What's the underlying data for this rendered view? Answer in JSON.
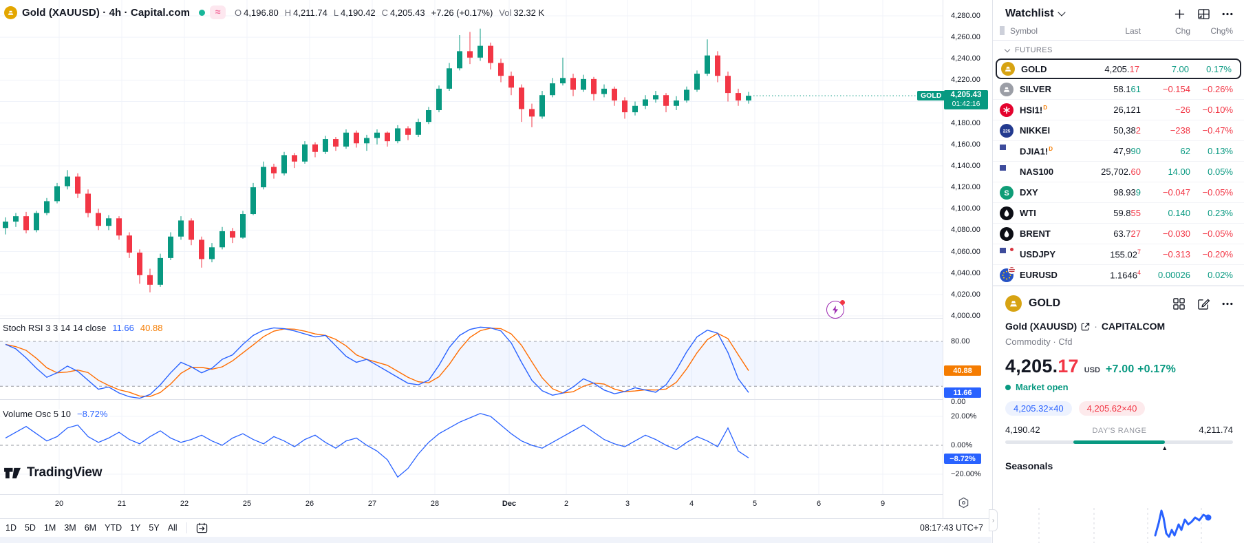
{
  "header": {
    "title": "Gold (XAUUSD) · 4h · Capital.com",
    "ohlc": {
      "o_l": "O",
      "o": "4,196.80",
      "h_l": "H",
      "h": "4,211.74",
      "l_l": "L",
      "l": "4,190.42",
      "c_l": "C",
      "c": "4,205.43",
      "chg": "+7.26 (+0.17%)",
      "vol_l": "Vol",
      "vol": "32.32 K"
    }
  },
  "indicators": {
    "stoch": {
      "label": "Stoch RSI 3 3 14 14 close",
      "k": "11.66",
      "d": "40.88",
      "axis_top": "80.00",
      "axis_bottom": "0.00",
      "d_badge": "40.88",
      "k_badge": "11.66"
    },
    "vol": {
      "label": "Volume Osc 5 10",
      "value": "−8.72%",
      "axis": [
        "20.00%",
        "0.00%",
        "−20.00%"
      ],
      "badge": "−8.72%"
    }
  },
  "price_scale": {
    "tag": "GOLD",
    "price": "4,205.43",
    "countdown": "01:42:16"
  },
  "toolbar": {
    "ranges": [
      "1D",
      "5D",
      "1M",
      "3M",
      "6M",
      "YTD",
      "1Y",
      "5Y",
      "All"
    ],
    "clock": "08:17:43 UTC+7"
  },
  "logo_text": "TradingView",
  "watchlist": {
    "title": "Watchlist",
    "columns": [
      "Symbol",
      "Last",
      "Chg",
      "Chg%"
    ],
    "section": "FUTURES",
    "rows": [
      {
        "symbol": "GOLD",
        "icon": "gold",
        "selected": true,
        "last_parts": [
          [
            "4,205.",
            ""
          ],
          [
            "17",
            "red"
          ]
        ],
        "chg": "7.00",
        "chg_c": "up",
        "pct": "0.17%",
        "pct_c": "up"
      },
      {
        "symbol": "SILVER",
        "icon": "silver",
        "last_parts": [
          [
            "58.1",
            ""
          ],
          [
            "61",
            "green"
          ]
        ],
        "chg": "−0.154",
        "chg_c": "down",
        "pct": "−0.26%",
        "pct_c": "down"
      },
      {
        "symbol": "HSI1!",
        "sup": "D",
        "icon": "hsi",
        "last_parts": [
          [
            "26,121",
            ""
          ]
        ],
        "chg": "−26",
        "chg_c": "down",
        "pct": "−0.10%",
        "pct_c": "down"
      },
      {
        "symbol": "NIKKEI",
        "icon": "nikkei",
        "last_parts": [
          [
            "50,38",
            ""
          ],
          [
            "2",
            "red"
          ]
        ],
        "chg": "−238",
        "chg_c": "down",
        "pct": "−0.47%",
        "pct_c": "down"
      },
      {
        "symbol": "DJIA1!",
        "sup": "D",
        "icon": "us",
        "last_parts": [
          [
            "47,9",
            ""
          ],
          [
            "90",
            "green"
          ]
        ],
        "chg": "62",
        "chg_c": "up",
        "pct": "0.13%",
        "pct_c": "up"
      },
      {
        "symbol": "NAS100",
        "icon": "us",
        "last_parts": [
          [
            "25,702.",
            ""
          ],
          [
            "60",
            "red"
          ]
        ],
        "chg": "14.00",
        "chg_c": "up",
        "pct": "0.05%",
        "pct_c": "up"
      },
      {
        "symbol": "DXY",
        "icon": "dxy",
        "last_parts": [
          [
            "98.93",
            ""
          ],
          [
            "9",
            "green"
          ]
        ],
        "chg": "−0.047",
        "chg_c": "down",
        "pct": "−0.05%",
        "pct_c": "down"
      },
      {
        "symbol": "WTI",
        "icon": "oil",
        "last_parts": [
          [
            "59.8",
            ""
          ],
          [
            "55",
            "red"
          ]
        ],
        "chg": "0.140",
        "chg_c": "up",
        "pct": "0.23%",
        "pct_c": "up"
      },
      {
        "symbol": "BRENT",
        "icon": "oil",
        "last_parts": [
          [
            "63.7",
            ""
          ],
          [
            "27",
            "red"
          ]
        ],
        "chg": "−0.030",
        "chg_c": "down",
        "pct": "−0.05%",
        "pct_c": "down"
      },
      {
        "symbol": "USDJPY",
        "icon": "usdjpy",
        "last_parts": [
          [
            "155.02",
            ""
          ],
          [
            "7",
            "sup-red"
          ]
        ],
        "chg": "−0.313",
        "chg_c": "down",
        "pct": "−0.20%",
        "pct_c": "down"
      },
      {
        "symbol": "EURUSD",
        "icon": "eurusd",
        "last_parts": [
          [
            "1.1646",
            ""
          ],
          [
            "4",
            "sup-red"
          ]
        ],
        "chg": "0.00026",
        "chg_c": "up",
        "pct": "0.02%",
        "pct_c": "up"
      }
    ]
  },
  "detail": {
    "symbol": "GOLD",
    "name": "Gold (XAUUSD)",
    "exchange": "CAPITALCOM",
    "type_line": "Commodity · Cfd",
    "price_int": "4,205.",
    "price_frac": "17",
    "currency": "USD",
    "change": "+7.00",
    "change_pct": "+0.17%",
    "status": "Market open",
    "bid": "4,205.32×40",
    "ask": "4,205.62×40",
    "range_low": "4,190.42",
    "range_label": "DAY'S RANGE",
    "range_high": "4,211.74",
    "seasonals": "Seasonals"
  },
  "chart_data": {
    "type": "candlestick",
    "title": "Gold (XAUUSD) 4h Capital.com",
    "price_ylim": [
      4000,
      4280
    ],
    "grid_step": 20,
    "current_price": 4205.43,
    "colors": {
      "up": "#089981",
      "down": "#f23645",
      "stoch_k": "#2962ff",
      "stoch_d": "#ff6d00",
      "vol": "#2962ff"
    },
    "x_ticks": {
      "labels": [
        "20",
        "21",
        "22",
        "25",
        "26",
        "27",
        "28",
        "Dec",
        "2",
        "3",
        "4",
        "5",
        "6",
        "9"
      ],
      "positions": [
        86,
        177,
        268,
        359,
        450,
        541,
        632,
        740,
        823,
        912,
        1005,
        1097,
        1190,
        1283
      ]
    },
    "candles": [
      [
        4082,
        4092,
        4076,
        4088
      ],
      [
        4088,
        4096,
        4083,
        4093
      ],
      [
        4093,
        4097,
        4077,
        4080
      ],
      [
        4080,
        4098,
        4078,
        4096
      ],
      [
        4096,
        4110,
        4094,
        4107
      ],
      [
        4107,
        4124,
        4105,
        4121
      ],
      [
        4121,
        4136,
        4118,
        4130
      ],
      [
        4130,
        4133,
        4110,
        4114
      ],
      [
        4114,
        4118,
        4092,
        4096
      ],
      [
        4096,
        4100,
        4080,
        4084
      ],
      [
        4084,
        4094,
        4080,
        4091
      ],
      [
        4091,
        4093,
        4071,
        4075
      ],
      [
        4075,
        4078,
        4054,
        4059
      ],
      [
        4059,
        4062,
        4030,
        4038
      ],
      [
        4038,
        4044,
        4022,
        4029
      ],
      [
        4029,
        4058,
        4027,
        4054
      ],
      [
        4054,
        4078,
        4052,
        4074
      ],
      [
        4074,
        4093,
        4071,
        4089
      ],
      [
        4089,
        4091,
        4066,
        4071
      ],
      [
        4071,
        4074,
        4045,
        4053
      ],
      [
        4053,
        4068,
        4050,
        4064
      ],
      [
        4064,
        4083,
        4062,
        4079
      ],
      [
        4079,
        4082,
        4068,
        4073
      ],
      [
        4073,
        4098,
        4072,
        4095
      ],
      [
        4095,
        4124,
        4094,
        4120
      ],
      [
        4120,
        4144,
        4118,
        4139
      ],
      [
        4139,
        4142,
        4128,
        4133
      ],
      [
        4133,
        4153,
        4131,
        4150
      ],
      [
        4150,
        4152,
        4138,
        4144
      ],
      [
        4144,
        4163,
        4142,
        4160
      ],
      [
        4160,
        4162,
        4148,
        4153
      ],
      [
        4153,
        4168,
        4151,
        4165
      ],
      [
        4165,
        4167,
        4154,
        4158
      ],
      [
        4158,
        4174,
        4156,
        4171
      ],
      [
        4171,
        4173,
        4157,
        4161
      ],
      [
        4161,
        4169,
        4154,
        4166
      ],
      [
        4166,
        4174,
        4160,
        4171
      ],
      [
        4171,
        4172,
        4158,
        4163
      ],
      [
        4163,
        4178,
        4161,
        4175
      ],
      [
        4175,
        4177,
        4164,
        4169
      ],
      [
        4169,
        4184,
        4167,
        4181
      ],
      [
        4181,
        4195,
        4179,
        4192
      ],
      [
        4192,
        4215,
        4190,
        4212
      ],
      [
        4212,
        4236,
        4210,
        4231
      ],
      [
        4231,
        4262,
        4229,
        4247
      ],
      [
        4247,
        4265,
        4235,
        4241
      ],
      [
        4241,
        4268,
        4238,
        4252
      ],
      [
        4252,
        4255,
        4230,
        4236
      ],
      [
        4236,
        4240,
        4218,
        4224
      ],
      [
        4224,
        4228,
        4206,
        4213
      ],
      [
        4213,
        4216,
        4181,
        4193
      ],
      [
        4193,
        4198,
        4176,
        4186
      ],
      [
        4186,
        4210,
        4184,
        4206
      ],
      [
        4206,
        4222,
        4204,
        4217
      ],
      [
        4217,
        4241,
        4215,
        4222
      ],
      [
        4222,
        4226,
        4205,
        4211
      ],
      [
        4211,
        4225,
        4209,
        4221
      ],
      [
        4221,
        4223,
        4201,
        4207
      ],
      [
        4207,
        4216,
        4204,
        4212
      ],
      [
        4212,
        4214,
        4196,
        4201
      ],
      [
        4201,
        4204,
        4184,
        4190
      ],
      [
        4190,
        4200,
        4187,
        4196
      ],
      [
        4196,
        4206,
        4193,
        4202
      ],
      [
        4202,
        4210,
        4199,
        4206
      ],
      [
        4206,
        4208,
        4190,
        4196
      ],
      [
        4196,
        4205,
        4192,
        4201
      ],
      [
        4201,
        4214,
        4199,
        4211
      ],
      [
        4211,
        4229,
        4209,
        4226
      ],
      [
        4226,
        4258,
        4224,
        4243
      ],
      [
        4243,
        4247,
        4218,
        4224
      ],
      [
        4224,
        4228,
        4200,
        4208
      ],
      [
        4208,
        4212,
        4196,
        4201
      ],
      [
        4201,
        4209,
        4198,
        4205.43
      ]
    ],
    "stoch_rsi": {
      "bands": [
        80,
        20
      ],
      "k_last": 11.66,
      "d_last": 40.88,
      "k": [
        76,
        70,
        58,
        44,
        32,
        38,
        47,
        40,
        28,
        16,
        19,
        11,
        6,
        4,
        9,
        22,
        38,
        52,
        46,
        38,
        44,
        56,
        62,
        76,
        88,
        95,
        98,
        97,
        94,
        90,
        86,
        88,
        74,
        60,
        52,
        56,
        48,
        40,
        32,
        24,
        22,
        28,
        48,
        72,
        88,
        96,
        99,
        98,
        94,
        78,
        52,
        28,
        14,
        8,
        11,
        19,
        30,
        24,
        15,
        10,
        13,
        18,
        15,
        12,
        22,
        42,
        66,
        86,
        95,
        91,
        65,
        30,
        11.66
      ],
      "d": [
        76,
        73,
        68,
        57.3,
        44.7,
        38,
        39,
        41.7,
        38.3,
        28,
        21,
        15.3,
        12,
        7,
        6.3,
        11.7,
        23,
        37.3,
        45.3,
        45.3,
        42.7,
        46,
        54,
        64.7,
        75.3,
        86.3,
        93.7,
        96.7,
        96.3,
        93.7,
        90,
        88,
        82.7,
        74,
        62,
        56,
        52,
        48,
        40,
        32,
        26,
        24.7,
        32.7,
        49.3,
        69.3,
        85.3,
        94.3,
        97.7,
        97,
        90,
        74.7,
        52.7,
        31.3,
        16.7,
        11,
        12.7,
        20,
        24.3,
        23,
        16.3,
        12.7,
        13.7,
        15.3,
        15,
        16.3,
        25.3,
        43.3,
        64.7,
        82.3,
        90.7,
        83.7,
        62,
        40.88
      ]
    },
    "volume_osc": {
      "ylim": [
        -20,
        20
      ],
      "last": -8.72,
      "values": [
        5,
        9,
        13,
        8,
        3,
        6,
        12,
        14,
        6,
        2,
        5,
        9,
        4,
        1,
        6,
        10,
        5,
        2,
        4,
        7,
        3,
        0,
        5,
        8,
        4,
        1,
        6,
        3,
        -1,
        4,
        7,
        2,
        -2,
        3,
        5,
        0,
        -4,
        -10,
        -22,
        -16,
        -6,
        2,
        8,
        12,
        16,
        19,
        22,
        20,
        14,
        8,
        3,
        0,
        -2,
        2,
        6,
        10,
        14,
        9,
        4,
        1,
        -1,
        3,
        7,
        4,
        0,
        -3,
        2,
        6,
        3,
        -1,
        12,
        -4,
        -8.72
      ]
    },
    "seasonals_spark": {
      "gridx": [
        67,
        147,
        225,
        303
      ],
      "points": [
        [
          236,
          78
        ],
        [
          241,
          60
        ],
        [
          245,
          42
        ],
        [
          248,
          52
        ],
        [
          252,
          75
        ],
        [
          256,
          80
        ],
        [
          260,
          70
        ],
        [
          264,
          78
        ],
        [
          270,
          62
        ],
        [
          274,
          70
        ],
        [
          279,
          55
        ],
        [
          284,
          62
        ],
        [
          289,
          58
        ],
        [
          294,
          52
        ],
        [
          300,
          56
        ],
        [
          306,
          48
        ],
        [
          313,
          52
        ]
      ]
    }
  }
}
